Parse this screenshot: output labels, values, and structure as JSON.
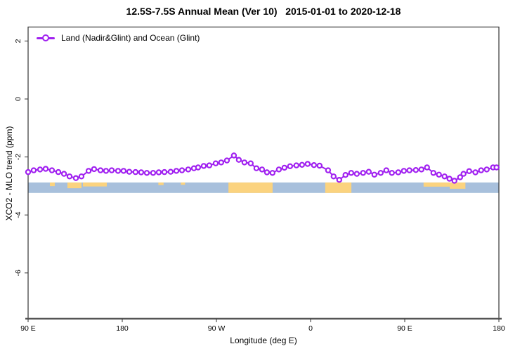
{
  "title": "12.5S-7.5S Annual Mean (Ver 10)   2015-01-01 to 2020-12-18",
  "legend": {
    "label": "Land (Nadir&Glint) and Ocean (Glint)",
    "marker_icon": "open-circle-on-line",
    "marker_color": "#A020F0"
  },
  "axes": {
    "x": {
      "label": "Longitude (deg E)",
      "tick_labels": [
        "90 E",
        "180",
        "90 W",
        "0",
        "90 E",
        "180"
      ],
      "tick_positions_deg": [
        90,
        180,
        270,
        360,
        450,
        540
      ],
      "note": "axis runs 90E eastward 1.25 times around the globe; data repeats after 360 deg"
    },
    "y": {
      "label": "XCO2 - MLO trend (ppm)",
      "tick_labels": [
        "2",
        "0",
        "-2",
        "-4",
        "-6"
      ],
      "tick_values": [
        2,
        0,
        -2,
        -4,
        -6
      ],
      "range": [
        -7.6,
        2.5
      ],
      "tick_labels_rotated": true
    }
  },
  "chart_data": {
    "type": "line",
    "title": "12.5S-7.5S Annual Mean (Ver 10)  2015-01-01 to 2020-12-18",
    "xlabel": "Longitude (deg E)",
    "ylabel": "XCO2 - MLO trend (ppm)",
    "xlim_deg": [
      90,
      540
    ],
    "ylim": [
      -7.6,
      2.5
    ],
    "grid": false,
    "legend_position": "top-left",
    "series": [
      {
        "name": "Land (Nadir&Glint) and Ocean (Glint)",
        "color": "#A020F0",
        "marker": "open-circle",
        "points": [
          [
            90.0,
            -2.52
          ],
          [
            95.4,
            -2.46
          ],
          [
            101.4,
            -2.43
          ],
          [
            106.8,
            -2.41
          ],
          [
            112.8,
            -2.46
          ],
          [
            118.9,
            -2.52
          ],
          [
            124.3,
            -2.58
          ],
          [
            129.6,
            -2.67
          ],
          [
            135.7,
            -2.73
          ],
          [
            141.0,
            -2.67
          ],
          [
            147.8,
            -2.48
          ],
          [
            153.1,
            -2.42
          ],
          [
            159.2,
            -2.46
          ],
          [
            164.5,
            -2.48
          ],
          [
            169.9,
            -2.46
          ],
          [
            176.0,
            -2.48
          ],
          [
            181.3,
            -2.48
          ],
          [
            186.7,
            -2.51
          ],
          [
            192.7,
            -2.52
          ],
          [
            198.1,
            -2.53
          ],
          [
            203.5,
            -2.55
          ],
          [
            209.5,
            -2.55
          ],
          [
            214.9,
            -2.53
          ],
          [
            220.3,
            -2.52
          ],
          [
            226.3,
            -2.51
          ],
          [
            231.7,
            -2.48
          ],
          [
            237.1,
            -2.46
          ],
          [
            243.1,
            -2.43
          ],
          [
            248.5,
            -2.39
          ],
          [
            252.5,
            -2.36
          ],
          [
            257.9,
            -2.31
          ],
          [
            263.2,
            -2.29
          ],
          [
            269.3,
            -2.22
          ],
          [
            274.6,
            -2.19
          ],
          [
            280.0,
            -2.12
          ],
          [
            286.7,
            -1.95
          ],
          [
            291.4,
            -2.1
          ],
          [
            296.8,
            -2.19
          ],
          [
            302.8,
            -2.22
          ],
          [
            308.2,
            -2.39
          ],
          [
            313.6,
            -2.43
          ],
          [
            318.3,
            -2.53
          ],
          [
            323.6,
            -2.55
          ],
          [
            329.7,
            -2.43
          ],
          [
            335.0,
            -2.37
          ],
          [
            340.4,
            -2.32
          ],
          [
            346.4,
            -2.29
          ],
          [
            351.8,
            -2.27
          ],
          [
            357.2,
            -2.24
          ],
          [
            363.2,
            -2.28
          ],
          [
            368.6,
            -2.3
          ],
          [
            376.7,
            -2.46
          ],
          [
            382.0,
            -2.67
          ],
          [
            387.4,
            -2.79
          ],
          [
            393.4,
            -2.62
          ],
          [
            398.8,
            -2.55
          ],
          [
            404.2,
            -2.58
          ],
          [
            410.2,
            -2.55
          ],
          [
            415.6,
            -2.51
          ],
          [
            421.0,
            -2.61
          ],
          [
            427.0,
            -2.55
          ],
          [
            432.4,
            -2.46
          ],
          [
            437.7,
            -2.55
          ],
          [
            443.8,
            -2.53
          ],
          [
            449.2,
            -2.48
          ],
          [
            454.5,
            -2.46
          ],
          [
            460.6,
            -2.45
          ],
          [
            466.0,
            -2.43
          ],
          [
            471.3,
            -2.36
          ],
          [
            477.4,
            -2.55
          ],
          [
            482.7,
            -2.61
          ],
          [
            488.1,
            -2.67
          ],
          [
            492.8,
            -2.75
          ],
          [
            497.5,
            -2.82
          ],
          [
            502.9,
            -2.7
          ],
          [
            506.2,
            -2.58
          ],
          [
            511.6,
            -2.49
          ],
          [
            517.6,
            -2.53
          ],
          [
            523.0,
            -2.46
          ],
          [
            528.4,
            -2.43
          ],
          [
            534.4,
            -2.36
          ],
          [
            537.8,
            -2.36
          ]
        ]
      }
    ],
    "map_strip": {
      "description": "ocean/land strip for latitude band 12.5S-7.5S drawn across plot",
      "ppm_top": -2.88,
      "ppm_bottom": -3.24,
      "ocean_color": "#A8C0DC",
      "land_color": "#FBD37F",
      "land_segments_deg": [
        {
          "from": 281.5,
          "to": 323.7,
          "h": 1.0,
          "name": "south-america"
        },
        {
          "from": 374.0,
          "to": 399.0,
          "h": 1.0,
          "name": "africa"
        },
        {
          "from": 110.8,
          "to": 115.5,
          "h": 0.35,
          "name": "islands"
        },
        {
          "from": 127.6,
          "to": 141.0,
          "h": 0.55,
          "name": "islands"
        },
        {
          "from": 142.4,
          "to": 165.2,
          "h": 0.38,
          "name": "islands"
        },
        {
          "from": 214.5,
          "to": 219.5,
          "h": 0.25,
          "name": "islands"
        },
        {
          "from": 236.0,
          "to": 240.0,
          "h": 0.22,
          "name": "islands"
        },
        {
          "from": 468.0,
          "to": 493.0,
          "h": 0.4,
          "name": "islands"
        },
        {
          "from": 493.0,
          "to": 508.0,
          "h": 0.6,
          "name": "islands"
        }
      ]
    },
    "colors": {
      "series": "#A020F0",
      "axis_box": "#333333",
      "bottom_axis": "#555555"
    }
  }
}
